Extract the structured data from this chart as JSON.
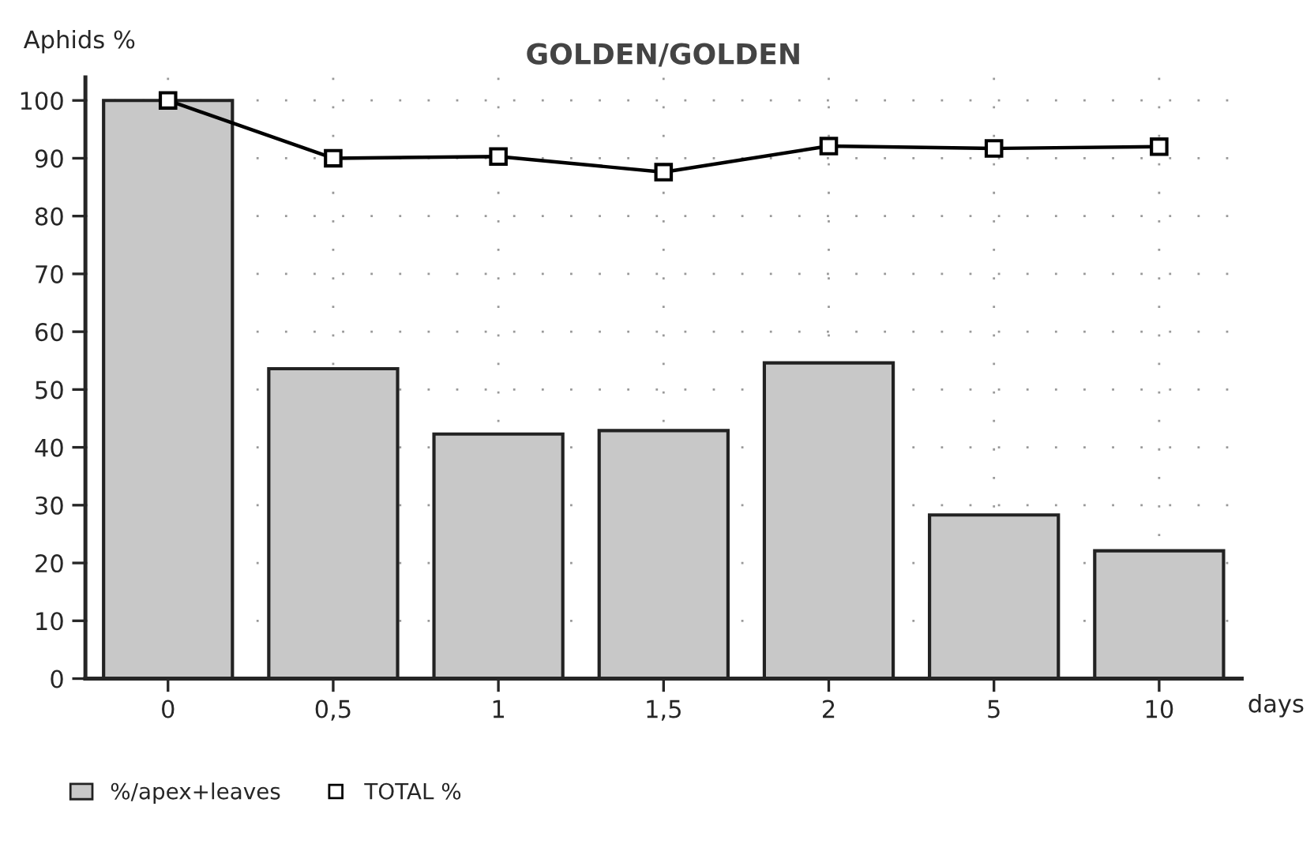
{
  "chart_data": {
    "type": "bar",
    "title": "GOLDEN/GOLDEN",
    "xlabel": "days",
    "ylabel": "Aphids %",
    "categories": [
      "0",
      "0,5",
      "1",
      "1,5",
      "2",
      "5",
      "10"
    ],
    "series": [
      {
        "name": "%/apex+leaves",
        "color": "#c8c8c8",
        "values": [
          100,
          53.6,
          42.3,
          42.9,
          54.6,
          28.3,
          22.1
        ]
      },
      {
        "name": "TOTAL %",
        "type": "line",
        "color": "#000000",
        "marker": "square",
        "values": [
          100,
          90,
          90.3,
          87.6,
          92.1,
          91.7,
          92
        ]
      }
    ],
    "ylim": [
      0,
      104
    ],
    "yticks": [
      0,
      10,
      20,
      30,
      40,
      50,
      60,
      70,
      80,
      90,
      100
    ],
    "grid": true,
    "legend": "bottom left"
  }
}
